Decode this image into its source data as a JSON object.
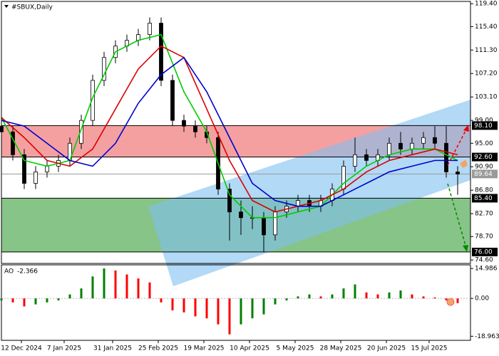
{
  "chart_data": [
    {
      "type": "candlestick",
      "title": "#SBUX,Daily",
      "x": [
        0,
        4,
        8,
        12,
        16,
        20,
        24,
        28,
        32,
        36,
        40,
        44,
        48,
        52,
        56,
        60,
        64,
        68,
        72,
        76,
        80,
        84,
        88,
        92,
        96,
        100,
        104,
        108,
        112,
        116,
        120,
        124,
        128,
        132,
        136,
        140,
        144,
        148,
        152,
        156,
        160
      ],
      "open": [
        98,
        97,
        93,
        88,
        90,
        91,
        92,
        95,
        99,
        106,
        110,
        112,
        113,
        114,
        116,
        106,
        99,
        98,
        97,
        96,
        87,
        83,
        82,
        82,
        79,
        83,
        84,
        85,
        84,
        85,
        87,
        91,
        93,
        92,
        93,
        95,
        94,
        95,
        96,
        95,
        90
      ],
      "high": [
        99,
        98,
        94,
        91,
        92,
        93,
        96,
        100,
        107,
        111,
        113,
        114,
        115,
        117,
        117,
        107,
        100,
        99,
        98,
        97,
        88,
        85,
        84,
        83,
        84,
        85,
        86,
        86,
        86,
        88,
        92,
        96,
        94,
        94,
        96,
        97,
        96,
        97,
        98,
        98,
        91
      ],
      "low": [
        96,
        92,
        87,
        87,
        89,
        90,
        91,
        94,
        98,
        105,
        109,
        111,
        112,
        113,
        105,
        98,
        97,
        96,
        95,
        86,
        78,
        79,
        80,
        76,
        78,
        82,
        83,
        83,
        83,
        84,
        86,
        90,
        91,
        91,
        92,
        93,
        93,
        94,
        94,
        89,
        86
      ],
      "close": [
        97,
        93,
        88,
        90,
        91,
        92,
        95,
        99,
        106,
        110,
        112,
        113,
        114,
        116,
        106,
        99,
        98,
        97,
        96,
        87,
        83,
        82,
        82,
        79,
        83,
        84,
        85,
        84,
        85,
        87,
        91,
        93,
        92,
        93,
        95,
        94,
        95,
        96,
        95,
        90,
        89.64
      ],
      "up_color": "#ffffff",
      "down_color": "#000000",
      "lines": [
        {
          "color": "#00cc00",
          "x": [
            0,
            8,
            16,
            24,
            32,
            40,
            48,
            56,
            64,
            72,
            80,
            88,
            96,
            104,
            112,
            120,
            128,
            136,
            144,
            152,
            160
          ],
          "values": [
            99.5,
            92,
            91,
            92,
            103,
            111,
            113,
            114,
            104,
            97,
            86,
            82,
            82,
            83,
            84,
            88,
            91,
            93,
            94,
            94,
            92
          ]
        },
        {
          "color": "#dd0000",
          "x": [
            0,
            8,
            16,
            24,
            32,
            40,
            48,
            56,
            64,
            72,
            80,
            88,
            96,
            104,
            112,
            120,
            128,
            136,
            144,
            152,
            160
          ],
          "values": [
            99.5,
            96,
            92,
            91,
            94,
            101,
            108,
            112,
            110,
            101,
            92,
            85,
            83,
            84,
            85,
            87,
            90,
            92,
            93,
            94,
            93
          ]
        },
        {
          "color": "#0000cc",
          "x": [
            0,
            8,
            16,
            24,
            32,
            40,
            48,
            56,
            64,
            72,
            80,
            88,
            96,
            104,
            112,
            120,
            128,
            136,
            144,
            152,
            160
          ],
          "values": [
            99,
            98,
            95,
            92,
            91,
            95,
            102,
            107,
            110,
            104,
            96,
            88,
            85,
            84,
            84,
            86,
            88,
            90,
            91,
            92,
            92
          ]
        }
      ],
      "zones": [
        {
          "from": 92.6,
          "to": 98.1,
          "color": "#f08080"
        },
        {
          "from": 76,
          "to": 85.4,
          "color": "#5fb05f"
        }
      ],
      "levels": [
        {
          "value": 98.1,
          "label": "98.10",
          "color": "#000000"
        },
        {
          "value": 92.6,
          "label": "92.60",
          "color": "#000000"
        },
        {
          "value": 89.64,
          "label": "89.64",
          "color": "#9a9a9a"
        },
        {
          "value": 85.4,
          "label": "85.40",
          "color": "#000000"
        },
        {
          "value": 76,
          "label": "76.00",
          "color": "#000000"
        }
      ],
      "xlim": [
        0,
        164.5
      ],
      "xticks": [
        {
          "value": 7,
          "label": "12 Dec 2024"
        },
        {
          "value": 22,
          "label": "7 Jan 2025"
        },
        {
          "value": 39,
          "label": "31 Jan 2025"
        },
        {
          "value": 55,
          "label": "25 Feb 2025"
        },
        {
          "value": 71,
          "label": "19 Mar 2025"
        },
        {
          "value": 87,
          "label": "10 Apr 2025"
        },
        {
          "value": 103,
          "label": "5 May 2025"
        },
        {
          "value": 119,
          "label": "28 May 2025"
        },
        {
          "value": 135,
          "label": "20 Jun 2025"
        },
        {
          "value": 150,
          "label": "15 Jul 2025"
        }
      ],
      "ylim": [
        74.0,
        119.8
      ],
      "yticks": [
        {
          "value": 119.4,
          "label": "119.40"
        },
        {
          "value": 115.4,
          "label": "115.40"
        },
        {
          "value": 111.3,
          "label": "111.30"
        },
        {
          "value": 107.2,
          "label": "107.20"
        },
        {
          "value": 103.1,
          "label": "103.10"
        },
        {
          "value": 99,
          "label": "99.00"
        },
        {
          "value": 95,
          "label": "95.00"
        },
        {
          "value": 90.9,
          "label": "90.90"
        },
        {
          "value": 86.8,
          "label": "86.80"
        },
        {
          "value": 82.7,
          "label": "82.70"
        },
        {
          "value": 78.7,
          "label": "78.70"
        },
        {
          "value": 74.6,
          "label": "74.60"
        }
      ]
    },
    {
      "type": "bar",
      "name": "AO",
      "x": [
        0,
        4,
        8,
        12,
        16,
        20,
        24,
        28,
        32,
        36,
        40,
        44,
        48,
        52,
        56,
        60,
        64,
        68,
        72,
        76,
        80,
        84,
        88,
        92,
        96,
        100,
        104,
        108,
        112,
        116,
        120,
        124,
        128,
        132,
        136,
        140,
        144,
        148,
        152,
        156,
        160
      ],
      "values": [
        -1,
        -2,
        -4,
        -3,
        -2,
        -1,
        2,
        5,
        11,
        15,
        14,
        12,
        10,
        8,
        -2,
        -6,
        -7,
        -9,
        -10,
        -13,
        -18,
        -13,
        -10,
        -8,
        -3,
        -1,
        1,
        2,
        1,
        2,
        5,
        7,
        3,
        2,
        3,
        4,
        2,
        1,
        0.5,
        -1,
        -2.366
      ],
      "up_color": "#008000",
      "down_color": "#ff0000",
      "ylim": [
        -21,
        16.8
      ],
      "yticks": [
        {
          "value": 14.986,
          "label": "14.986"
        },
        {
          "value": 0,
          "label": "0.00"
        },
        {
          "value": -18.963,
          "label": "-18.963"
        }
      ]
    }
  ]
}
